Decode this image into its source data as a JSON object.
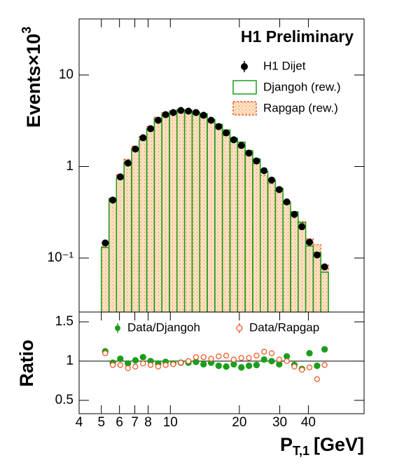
{
  "chart_data": [
    {
      "type": "histogram",
      "title": "H1 Preliminary",
      "ylabel": [
        "Events×10",
        "3"
      ],
      "logx": true,
      "logy": true,
      "xlim": [
        4,
        70
      ],
      "ylim": [
        0.0257,
        41
      ],
      "yticks": [
        {
          "value": 0.1,
          "label": "10⁻¹"
        },
        1,
        10
      ],
      "bins": [
        5.0,
        5.4,
        5.82,
        6.28,
        6.78,
        7.31,
        7.89,
        8.51,
        9.18,
        9.91,
        10.69,
        11.54,
        12.45,
        13.43,
        14.49,
        15.64,
        16.87,
        18.21,
        19.64,
        21.19,
        22.87,
        24.67,
        26.62,
        28.73,
        31.0,
        33.44,
        36.09,
        38.94,
        42.01,
        45.33,
        48.91
      ],
      "x": [
        5.2,
        5.61,
        6.05,
        6.53,
        7.04,
        7.6,
        8.2,
        8.85,
        9.54,
        10.3,
        11.11,
        11.99,
        12.94,
        13.96,
        15.06,
        16.25,
        17.53,
        18.91,
        20.41,
        22.02,
        23.76,
        25.64,
        27.66,
        29.85,
        32.21,
        34.75,
        37.49,
        40.45,
        43.65,
        47.09
      ],
      "series": [
        {
          "name": "H1 Dijet",
          "color": "#000000",
          "values": [
            0.146,
            0.43,
            0.77,
            1.09,
            1.55,
            2.06,
            2.59,
            3.2,
            3.69,
            3.89,
            4.1,
            4.03,
            3.89,
            3.63,
            3.2,
            2.73,
            2.33,
            1.96,
            1.7,
            1.4,
            1.15,
            0.9,
            0.71,
            0.56,
            0.41,
            0.3,
            0.22,
            0.149,
            0.108,
            0.08
          ]
        },
        {
          "name": "Djangoh (rew.)",
          "color": "#1a9e1a",
          "values": [
            0.13,
            0.44,
            0.75,
            1.12,
            1.53,
            1.96,
            2.59,
            3.3,
            3.73,
            4.01,
            4.18,
            4.11,
            3.93,
            3.78,
            3.27,
            2.9,
            2.51,
            2.04,
            1.85,
            1.49,
            1.21,
            0.88,
            0.71,
            0.58,
            0.39,
            0.32,
            0.244,
            0.135,
            0.115,
            0.07
          ]
        },
        {
          "name": "Rapgap (rew.)",
          "color": "#f05a28",
          "values": [
            0.133,
            0.45,
            0.81,
            1.2,
            1.67,
            2.12,
            2.73,
            3.44,
            3.88,
            4.05,
            4.18,
            4.03,
            3.7,
            3.46,
            3.11,
            2.58,
            2.18,
            1.92,
            1.63,
            1.35,
            1.07,
            0.8,
            0.65,
            0.55,
            0.41,
            0.32,
            0.25,
            0.162,
            0.14,
            0.084
          ]
        }
      ]
    },
    {
      "type": "scatter",
      "ylabel": "Ratio",
      "xlabel": [
        "P",
        "T,1",
        "[GeV]"
      ],
      "logx": true,
      "xlim": [
        4,
        70
      ],
      "xticks": [
        4,
        5,
        6,
        7,
        8,
        10,
        20,
        30,
        40
      ],
      "ylim": [
        0.33,
        1.625
      ],
      "yticks": [
        0.5,
        1,
        1.5
      ],
      "reference_line": 1,
      "x": [
        5.2,
        5.61,
        6.05,
        6.53,
        7.04,
        7.6,
        8.2,
        8.85,
        9.54,
        10.3,
        11.11,
        11.99,
        12.94,
        13.96,
        15.06,
        16.25,
        17.53,
        18.91,
        20.41,
        22.02,
        23.76,
        25.64,
        27.66,
        29.85,
        32.21,
        34.75,
        37.49,
        40.45,
        43.65,
        47.09
      ],
      "series": [
        {
          "name": "Data/Djangoh",
          "color": "#1a9e1a",
          "values": [
            1.125,
            0.98,
            1.03,
            0.97,
            1.01,
            1.05,
            1.0,
            0.97,
            0.99,
            0.97,
            0.98,
            0.98,
            0.99,
            0.96,
            0.98,
            0.94,
            0.93,
            0.96,
            0.92,
            0.94,
            0.95,
            1.02,
            1.0,
            0.96,
            1.06,
            0.95,
            0.9,
            1.1,
            0.94,
            1.15
          ]
        },
        {
          "name": "Data/Rapgap",
          "color": "#f05a28",
          "values": [
            1.1,
            0.95,
            0.95,
            0.91,
            0.93,
            0.97,
            0.95,
            0.93,
            0.95,
            0.96,
            0.98,
            1.0,
            1.05,
            1.05,
            1.03,
            1.06,
            1.07,
            1.02,
            1.04,
            1.04,
            1.07,
            1.12,
            1.1,
            1.02,
            1.0,
            0.93,
            0.89,
            0.92,
            0.77,
            0.95
          ]
        }
      ]
    }
  ]
}
